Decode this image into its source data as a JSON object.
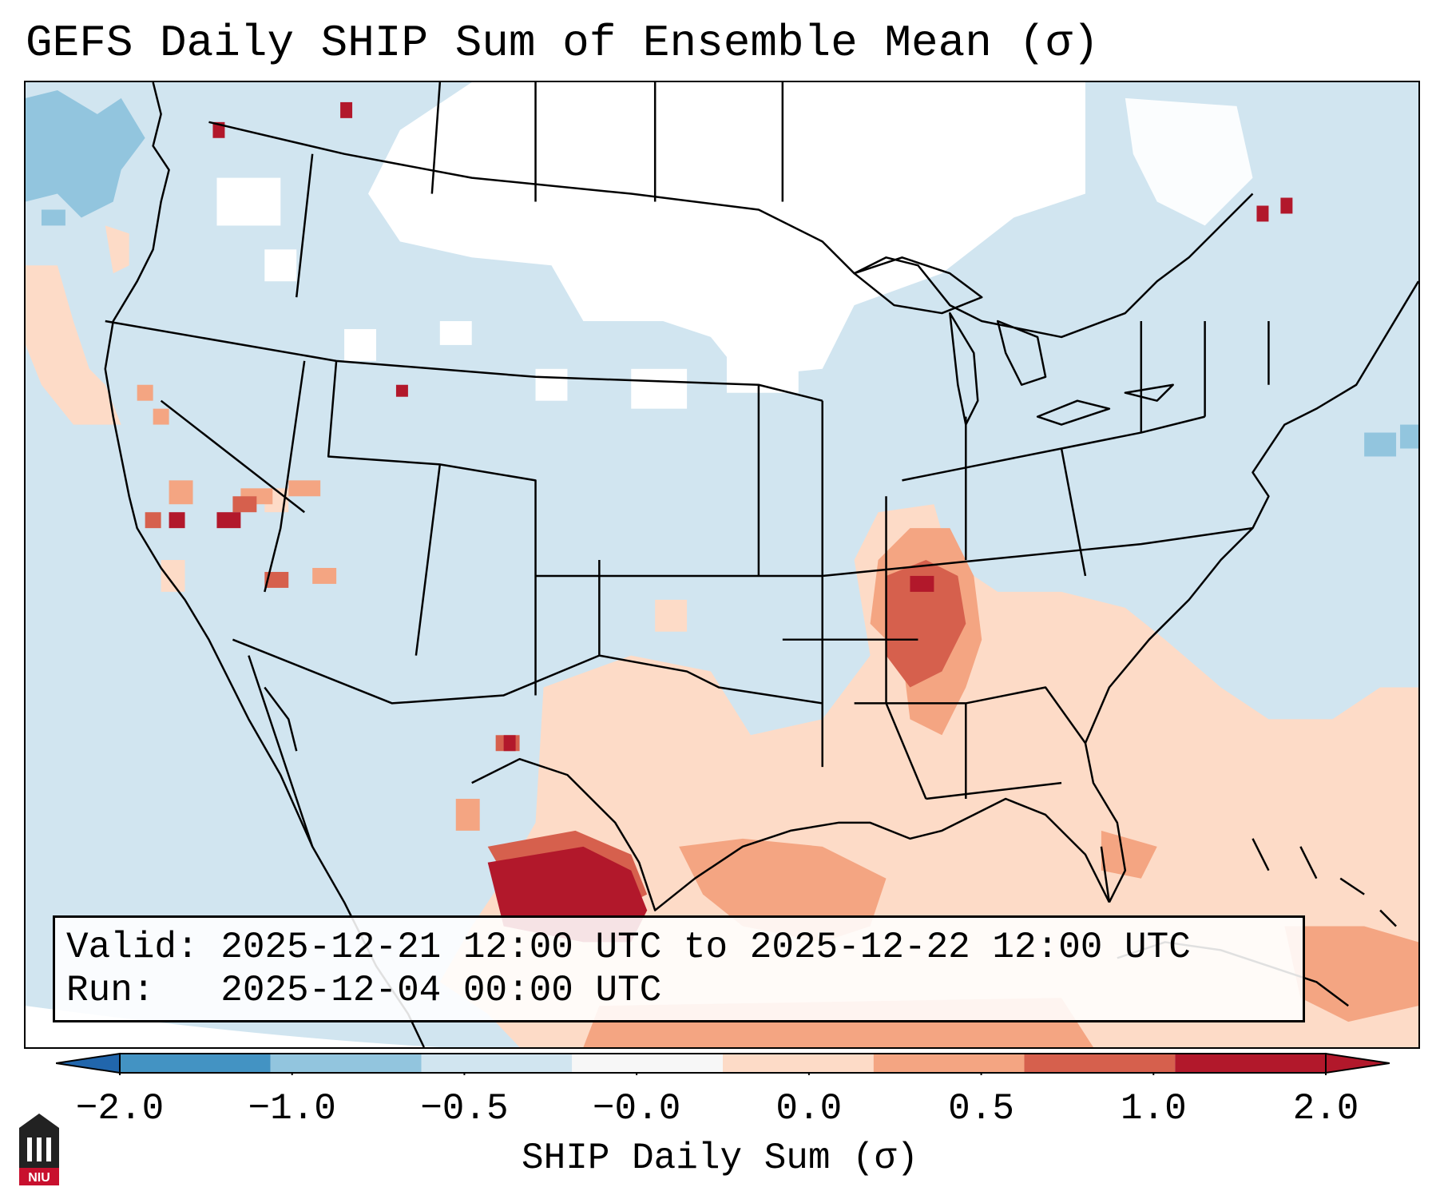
{
  "title": "GEFS Daily SHIP Sum of Ensemble Mean (σ)",
  "info": {
    "valid_line": "Valid: 2025-12-21 12:00 UTC to 2025-12-22 12:00 UTC",
    "run_line": "Run:   2025-12-04 00:00 UTC"
  },
  "colorbar": {
    "label": "SHIP Daily Sum (σ)",
    "ticks": [
      "−2.0",
      "−1.0",
      "−0.5",
      "−0.0",
      "0.0",
      "0.5",
      "1.0",
      "2.0"
    ],
    "colors": [
      "#4393c3",
      "#92c5de",
      "#d1e5f0",
      "#f7f7f7",
      "#fddbc7",
      "#f4a582",
      "#d6604d",
      "#b2182b"
    ],
    "extend_low_color": "#2166ac",
    "extend_high_color": "#b2182b"
  },
  "map_colors": {
    "background_neutral": "#d1e5f0",
    "near_zero": "#ffffff",
    "weak_negative": "#92c5de",
    "weak_positive": "#fddbc7",
    "moderate_positive": "#f4a582",
    "strong_positive": "#d6604d",
    "extreme_positive": "#b2182b"
  },
  "logo": {
    "text": "NIU",
    "icon": "niu-logo-icon"
  }
}
